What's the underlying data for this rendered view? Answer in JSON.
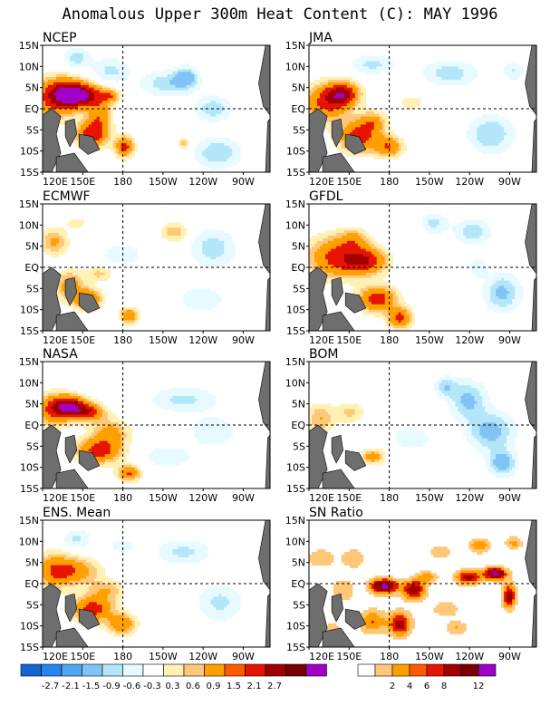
{
  "title": "Anomalous Upper 300m Heat Content (C): MAY 1996",
  "chart_data": {
    "type": "heatmap",
    "x_ticks": [
      "120E",
      "150E",
      "180",
      "150W",
      "120W",
      "90W"
    ],
    "y_ticks": [
      "15N",
      "10N",
      "5N",
      "EQ",
      "5S",
      "10S",
      "15S"
    ],
    "panels": [
      {
        "id": "ncep",
        "title": "NCEP"
      },
      {
        "id": "jma",
        "title": "JMA"
      },
      {
        "id": "ecmwf",
        "title": "ECMWF"
      },
      {
        "id": "gfdl",
        "title": "GFDL"
      },
      {
        "id": "nasa",
        "title": "NASA"
      },
      {
        "id": "bom",
        "title": "BOM"
      },
      {
        "id": "ens",
        "title": "ENS. Mean"
      },
      {
        "id": "sn",
        "title": "SN Ratio"
      }
    ],
    "anomaly_colorbar": {
      "labels": [
        "-2.7",
        "-2.1",
        "-1.5",
        "-0.9",
        "-0.6",
        "-0.3",
        "0.3",
        "0.6",
        "0.9",
        "1.5",
        "2.1",
        "2.7"
      ],
      "colors": [
        "#1464d2",
        "#2882f0",
        "#50a5f5",
        "#82c3f5",
        "#b4e6fa",
        "#e6faff",
        "#ffffff",
        "#fff0b4",
        "#ffc878",
        "#ffa000",
        "#ff5a00",
        "#e61400",
        "#a00000",
        "#780000",
        "#a000c8"
      ]
    },
    "sn_colorbar": {
      "labels": [
        "2",
        "4",
        "6",
        "8",
        "12"
      ],
      "colors": [
        "#ffffff",
        "#ffc878",
        "#ffa000",
        "#ff5a00",
        "#e61400",
        "#a00000",
        "#780000",
        "#a000c8"
      ]
    }
  }
}
